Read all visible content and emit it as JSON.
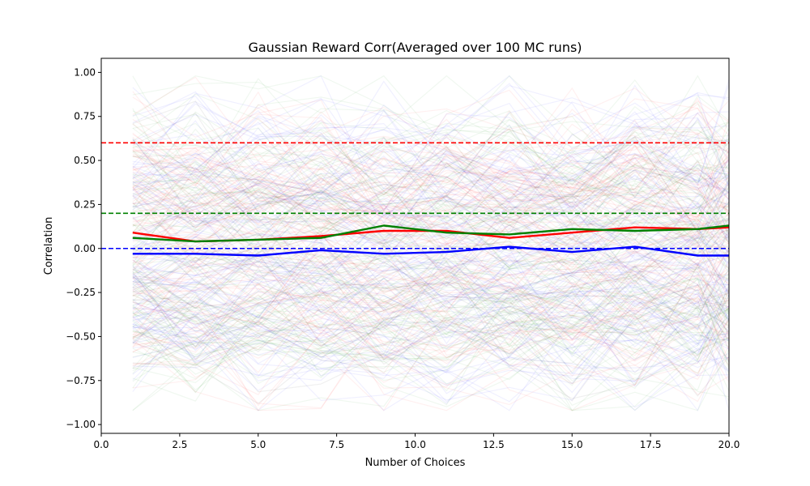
{
  "chart_data": {
    "type": "line",
    "title": "Gaussian Reward Corr(Averaged over 100 MC runs)",
    "xlabel": "Number of Choices",
    "ylabel": "Correlation",
    "xlim": [
      0,
      20
    ],
    "ylim": [
      -1.05,
      1.08
    ],
    "grid": false,
    "x_ticks": [
      0.0,
      2.5,
      5.0,
      7.5,
      10.0,
      12.5,
      15.0,
      17.5,
      20.0
    ],
    "x_tick_labels": [
      "0.0",
      "2.5",
      "5.0",
      "7.5",
      "10.0",
      "12.5",
      "15.0",
      "17.5",
      "20.0"
    ],
    "y_ticks": [
      -1.0,
      -0.75,
      -0.5,
      -0.25,
      0.0,
      0.25,
      0.5,
      0.75,
      1.0
    ],
    "y_tick_labels": [
      "−1.00",
      "−0.75",
      "−0.50",
      "−0.25",
      "0.00",
      "0.25",
      "0.50",
      "0.75",
      "1.00"
    ],
    "x": [
      1,
      3,
      5,
      7,
      9,
      11,
      13,
      15,
      17,
      19,
      20
    ],
    "series": [
      {
        "color": "#ff0000",
        "values": [
          0.09,
          0.04,
          0.05,
          0.07,
          0.1,
          0.1,
          0.06,
          0.09,
          0.12,
          0.11,
          0.12
        ]
      },
      {
        "color": "#008000",
        "values": [
          0.06,
          0.04,
          0.05,
          0.06,
          0.13,
          0.09,
          0.08,
          0.11,
          0.1,
          0.11,
          0.13
        ]
      },
      {
        "color": "#0000ff",
        "values": [
          -0.03,
          -0.03,
          -0.04,
          -0.01,
          -0.03,
          -0.02,
          0.01,
          -0.02,
          0.01,
          -0.04,
          -0.04
        ]
      }
    ],
    "reference_lines": [
      {
        "y": 0.6,
        "color": "#ff0000",
        "style": "dashed"
      },
      {
        "y": 0.2,
        "color": "#008000",
        "style": "dashed"
      },
      {
        "y": 0.0,
        "color": "#0000ff",
        "style": "dashed"
      }
    ],
    "background_runs": {
      "count_per_color": 100,
      "colors": [
        "#ff0000",
        "#008000",
        "#0000ff",
        "#000000"
      ],
      "opacity": 0.06
    }
  }
}
